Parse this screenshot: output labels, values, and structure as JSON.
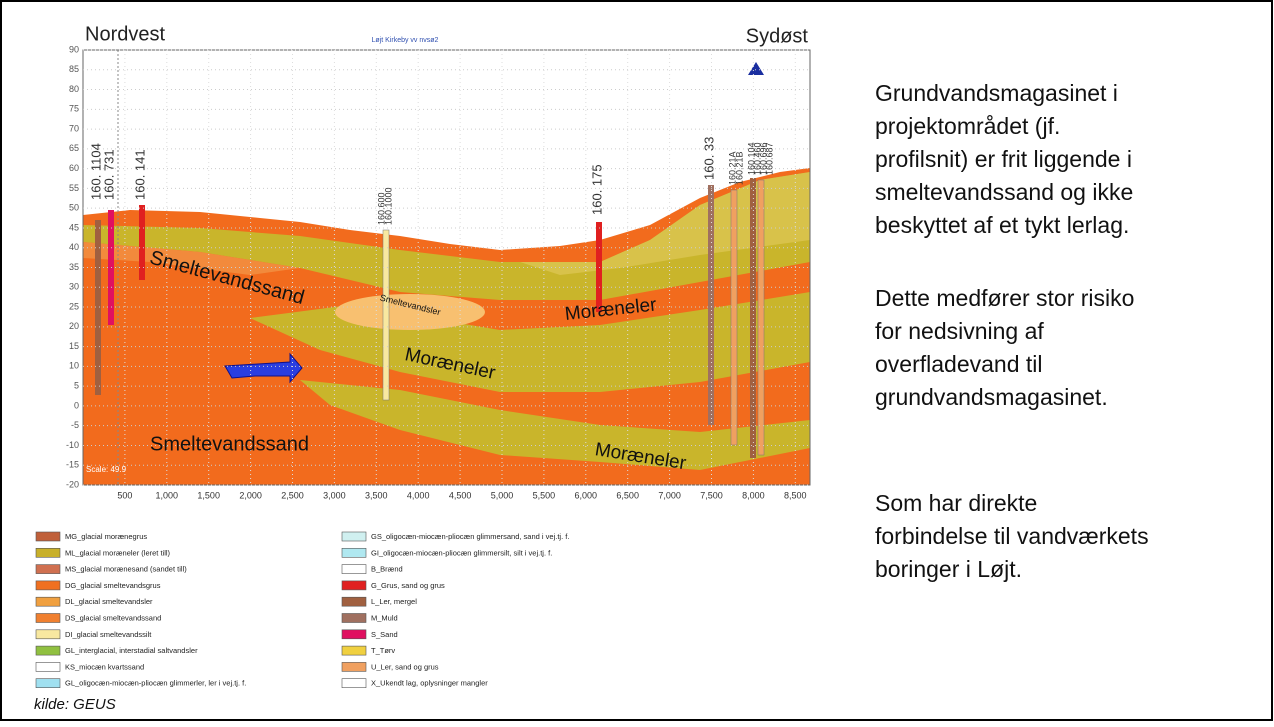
{
  "figure": {
    "title_left": "Nordvest",
    "title_right": "Sydøst",
    "profile_name": "Løjt Kirkeby vv nvsø2",
    "scale": "Scale: 49.9",
    "yticks": [
      "90",
      "85",
      "80",
      "75",
      "70",
      "65",
      "60",
      "55",
      "50",
      "45",
      "40",
      "35",
      "30",
      "25",
      "20",
      "15",
      "10",
      "5",
      "0",
      "-5",
      "-10",
      "-15",
      "-20"
    ],
    "xticks": [
      "500",
      "1,000",
      "1,500",
      "2,000",
      "2,500",
      "3,000",
      "3,500",
      "4,000",
      "4,500",
      "5,000",
      "5,500",
      "6,000",
      "6,500",
      "7,000",
      "7,500",
      "8,000",
      "8,500"
    ],
    "layer_labels": [
      "Smeltevandssand",
      "Smeltevandsler",
      "Moræneler",
      "Moræneler",
      "Smeltevandssand",
      "Moræneler"
    ],
    "boreholes": [
      "160. 1104",
      "160. 731",
      "160. 141",
      "160.600",
      "160.1000",
      "160. 175",
      "160. 33",
      "160.21A",
      "160.21B",
      "160.104",
      "160.460",
      "160.696",
      "160.687"
    ],
    "legend_left": [
      "MG_glacial morænegrus",
      "ML_glacial moræneler (leret till)",
      "MS_glacial morænesand (sandet till)",
      "DG_glacial smeltevandsgrus",
      "DL_glacial smeltevandsler",
      "DS_glacial smeltevandssand",
      "DI_glacial smeltevandssilt",
      "GL_interglacial, interstadial saltvandsler",
      "KS_miocæn kvartssand",
      "GL_oligocæn-miocæn-pliocæn glimmerler, ler i vej.tj. f."
    ],
    "legend_right": [
      "GS_oligocæn-miocæn-pliocæn glimmersand, sand i vej.tj. f.",
      "GI_oligocæn-miocæn-pliocæn glimmersilt, silt i vej.tj. f.",
      "B_Brænd",
      "G_Grus, sand og grus",
      "L_Ler, mergel",
      "M_Muld",
      "S_Sand",
      "T_Tørv",
      "U_Ler, sand og grus",
      "X_Ukendt lag, oplysninger mangler"
    ]
  },
  "text": {
    "paragraphs": [
      [
        "Grundvandsmagasinet i",
        "projektområdet (jf.",
        "profilsnit) er frit liggende i",
        "smeltevandssand og ikke",
        "beskyttet af et tykt lerlag."
      ],
      [
        "Dette medfører stor risiko",
        "for nedsivning af",
        "overfladevand til",
        "grundvandsmagasinet."
      ],
      [
        "Som har direkte",
        "forbindelse til vandværkets",
        "boringer i Løjt."
      ]
    ]
  },
  "source": "kilde: GEUS"
}
